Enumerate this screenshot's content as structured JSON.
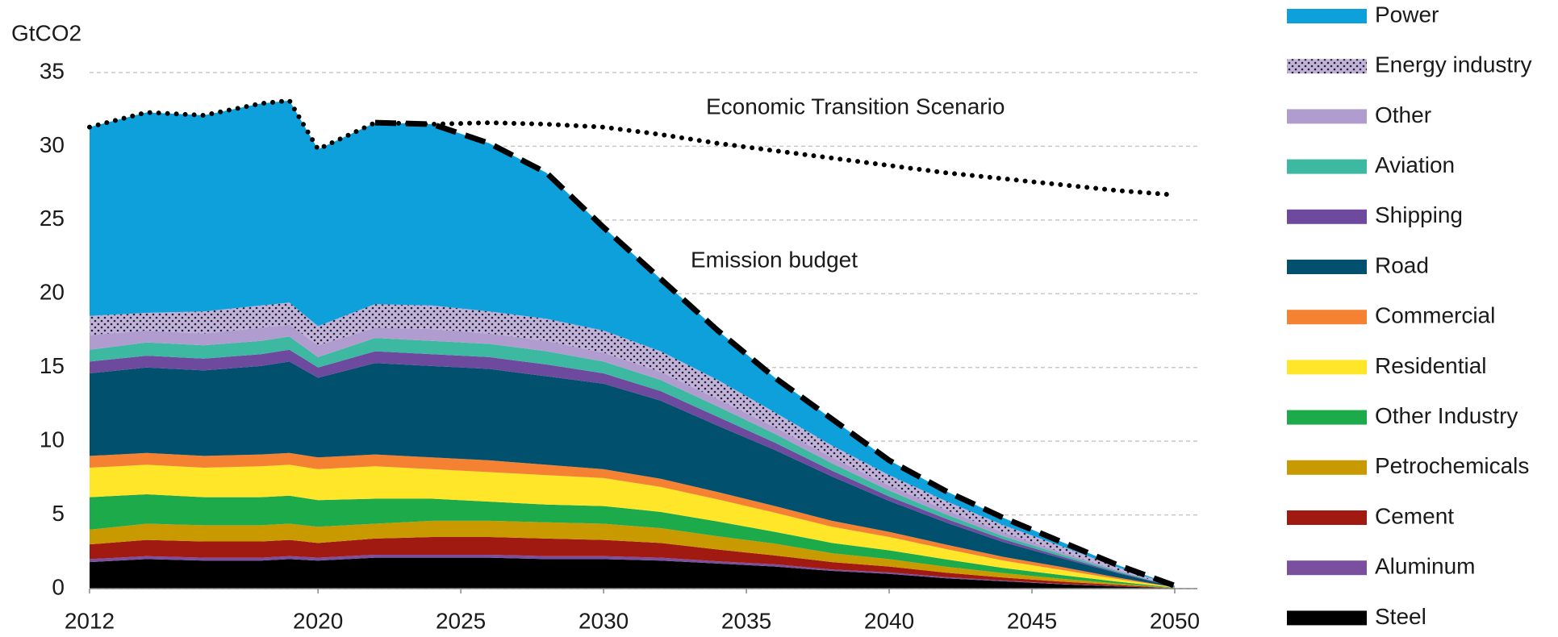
{
  "chart_data": {
    "type": "stacked_area",
    "y_label": "GtCO2",
    "x": [
      2012,
      2014,
      2016,
      2018,
      2019,
      2020,
      2022,
      2024,
      2026,
      2028,
      2030,
      2032,
      2034,
      2036,
      2038,
      2040,
      2042,
      2044,
      2046,
      2048,
      2050
    ],
    "xlim": [
      2012,
      2050
    ],
    "xticks": [
      2012,
      2020,
      2025,
      2030,
      2035,
      2040,
      2045,
      2050
    ],
    "ylim": [
      0,
      35
    ],
    "yticks": [
      0,
      5,
      10,
      15,
      20,
      25,
      30,
      35
    ],
    "grid": true,
    "series": [
      {
        "name": "Steel",
        "color": "#000000",
        "values": [
          1.8,
          2.0,
          1.9,
          1.9,
          2.0,
          1.9,
          2.1,
          2.1,
          2.1,
          2.0,
          2.0,
          1.9,
          1.7,
          1.5,
          1.2,
          1.0,
          0.7,
          0.5,
          0.3,
          0.15,
          0.02
        ]
      },
      {
        "name": "Aluminum",
        "color": "#7b4fa0",
        "values": [
          0.2,
          0.2,
          0.2,
          0.2,
          0.2,
          0.2,
          0.2,
          0.2,
          0.2,
          0.2,
          0.2,
          0.2,
          0.15,
          0.15,
          0.1,
          0.1,
          0.08,
          0.05,
          0.03,
          0.02,
          0
        ]
      },
      {
        "name": "Cement",
        "color": "#a11a12",
        "values": [
          1.0,
          1.1,
          1.1,
          1.1,
          1.1,
          1.0,
          1.1,
          1.2,
          1.2,
          1.2,
          1.1,
          1.0,
          0.8,
          0.6,
          0.5,
          0.4,
          0.3,
          0.2,
          0.15,
          0.08,
          0.01
        ]
      },
      {
        "name": "Petrochemicals",
        "color": "#c99a00",
        "values": [
          1.0,
          1.1,
          1.1,
          1.1,
          1.1,
          1.1,
          1.0,
          1.1,
          1.1,
          1.1,
          1.1,
          1.0,
          0.9,
          0.8,
          0.6,
          0.5,
          0.4,
          0.3,
          0.2,
          0.1,
          0.01
        ]
      },
      {
        "name": "Other Industry",
        "color": "#1daa4a",
        "values": [
          2.2,
          2.0,
          1.9,
          1.9,
          1.9,
          1.8,
          1.7,
          1.5,
          1.3,
          1.2,
          1.2,
          1.1,
          1.0,
          0.8,
          0.7,
          0.6,
          0.5,
          0.35,
          0.25,
          0.12,
          0.02
        ]
      },
      {
        "name": "Residential",
        "color": "#ffe629",
        "values": [
          2.0,
          2.0,
          2.0,
          2.1,
          2.1,
          2.1,
          2.2,
          2.0,
          2.0,
          2.0,
          1.9,
          1.7,
          1.5,
          1.3,
          1.1,
          0.9,
          0.7,
          0.5,
          0.35,
          0.18,
          0.02
        ]
      },
      {
        "name": "Commercial",
        "color": "#f58232",
        "values": [
          0.8,
          0.8,
          0.8,
          0.8,
          0.8,
          0.8,
          0.8,
          0.8,
          0.8,
          0.7,
          0.6,
          0.55,
          0.5,
          0.45,
          0.4,
          0.35,
          0.3,
          0.25,
          0.2,
          0.1,
          0.01
        ]
      },
      {
        "name": "Road",
        "color": "#00506e",
        "values": [
          5.6,
          5.8,
          5.8,
          6.0,
          6.2,
          5.4,
          6.2,
          6.2,
          6.2,
          6.0,
          5.8,
          5.3,
          4.5,
          3.8,
          3.0,
          2.1,
          1.5,
          1.0,
          0.6,
          0.3,
          0.03
        ]
      },
      {
        "name": "Shipping",
        "color": "#6e4a9e",
        "values": [
          0.8,
          0.8,
          0.8,
          0.8,
          0.8,
          0.7,
          0.8,
          0.8,
          0.8,
          0.8,
          0.7,
          0.65,
          0.6,
          0.5,
          0.4,
          0.3,
          0.25,
          0.2,
          0.12,
          0.06,
          0.01
        ]
      },
      {
        "name": "Aviation",
        "color": "#3db8a1",
        "values": [
          0.8,
          0.9,
          0.9,
          0.9,
          0.9,
          0.7,
          0.9,
          0.9,
          0.9,
          0.9,
          0.8,
          0.75,
          0.7,
          0.6,
          0.5,
          0.4,
          0.3,
          0.2,
          0.15,
          0.07,
          0.01
        ]
      },
      {
        "name": "Other",
        "color": "#b19cd0",
        "values": [
          1.0,
          0.8,
          0.8,
          0.9,
          0.8,
          0.8,
          0.7,
          0.8,
          0.7,
          0.7,
          0.6,
          0.55,
          0.5,
          0.45,
          0.4,
          0.35,
          0.3,
          0.25,
          0.15,
          0.07,
          0.01
        ]
      },
      {
        "name": "Energy industry",
        "color": "#c1b2dc",
        "pattern": "dotted",
        "values": [
          1.3,
          1.2,
          1.5,
          1.5,
          1.5,
          1.3,
          1.6,
          1.6,
          1.5,
          1.5,
          1.5,
          1.4,
          1.3,
          1.0,
          0.8,
          0.7,
          0.6,
          0.5,
          0.4,
          0.2,
          0.02
        ]
      },
      {
        "name": "Power",
        "color": "#0ea0db",
        "values": [
          12.8,
          13.6,
          13.3,
          13.7,
          13.7,
          12.0,
          12.3,
          12.3,
          11.4,
          9.9,
          7.0,
          4.9,
          3.35,
          2.35,
          1.8,
          1.0,
          0.67,
          0.5,
          0.3,
          0.15,
          0.03
        ]
      }
    ],
    "lines": [
      {
        "label": "Economic Transition Scenario",
        "dash": "dotted",
        "color": "#000000",
        "values": [
          31.3,
          32.3,
          32.1,
          32.9,
          33.1,
          29.8,
          31.6,
          31.5,
          31.6,
          31.5,
          31.3,
          30.8,
          30.2,
          29.7,
          29.2,
          28.7,
          28.2,
          27.8,
          27.4,
          27.0,
          26.7
        ]
      },
      {
        "label": "Emission budget",
        "dash": "dashed",
        "color": "#000000",
        "values": [
          null,
          null,
          null,
          null,
          null,
          null,
          31.6,
          31.5,
          30.2,
          28.2,
          24.5,
          21.0,
          17.5,
          14.3,
          11.5,
          8.7,
          6.6,
          4.8,
          3.2,
          1.6,
          0.2
        ]
      }
    ]
  }
}
